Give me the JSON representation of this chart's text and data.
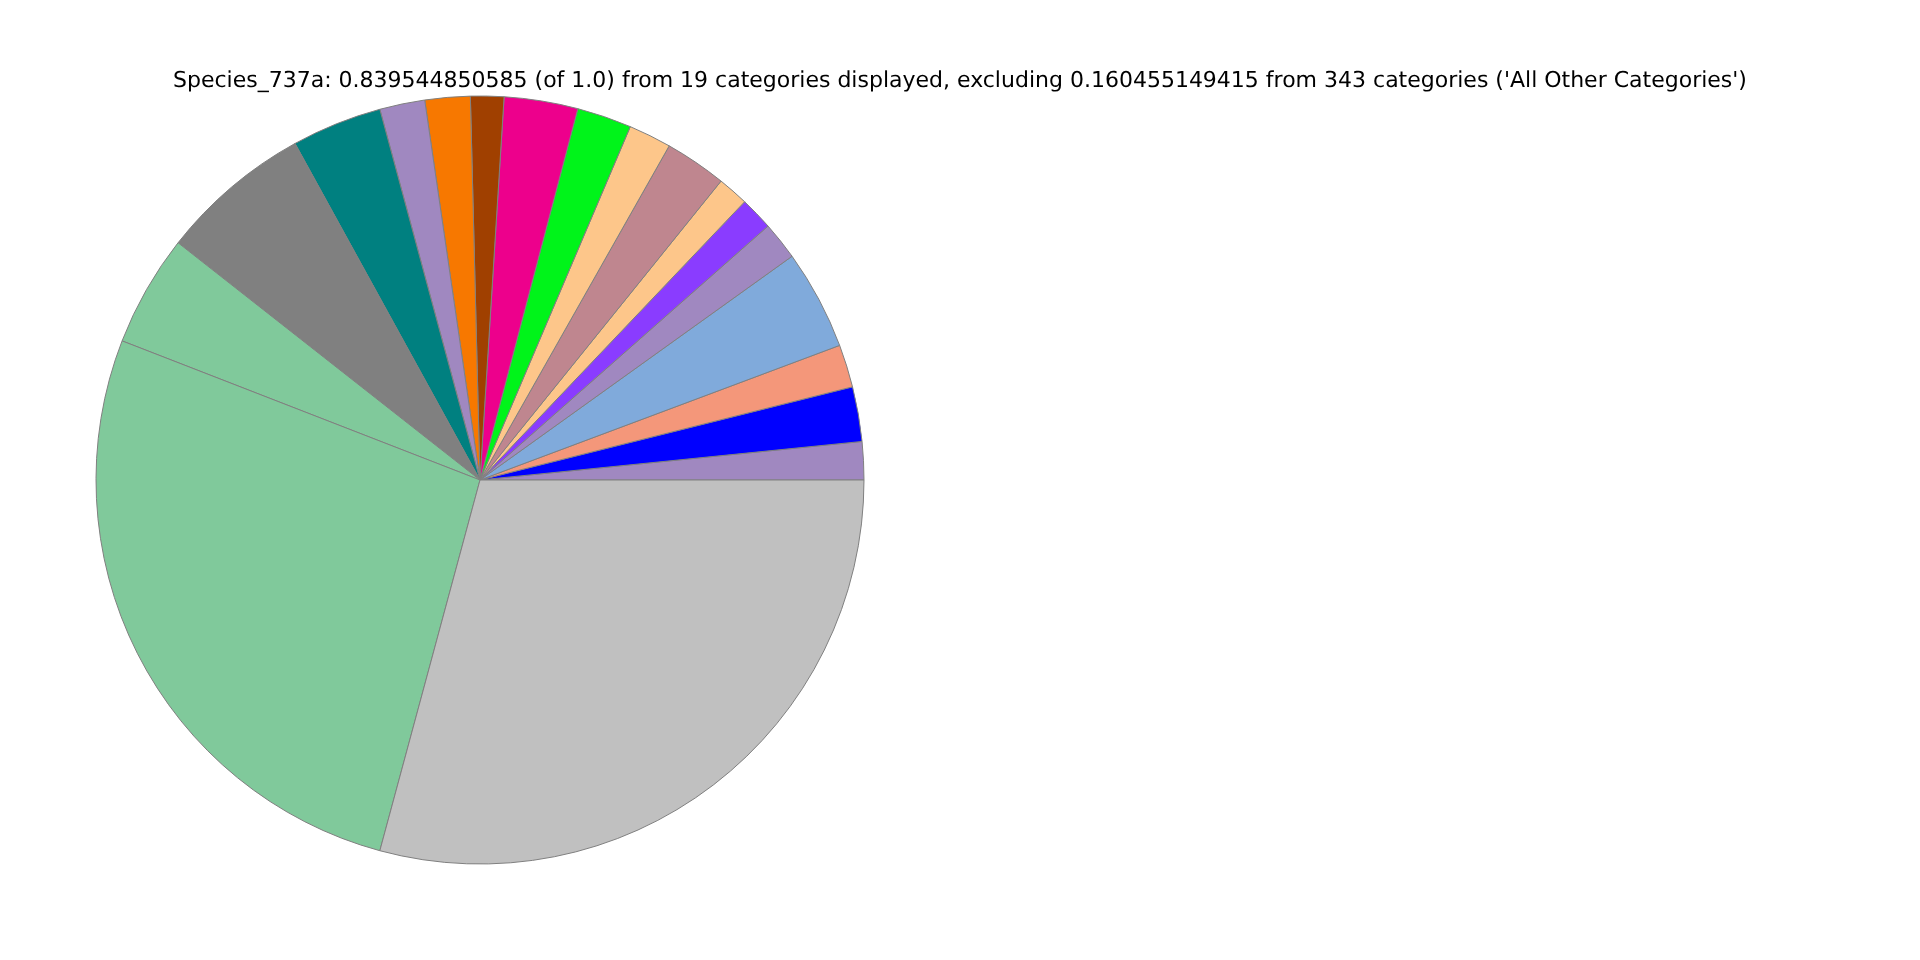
{
  "chart_data": {
    "type": "pie",
    "title": "Species_737a: 0.839544850585 (of 1.0) from 19 categories displayed, excluding 0.160455149415 from 343 categories ('All Other Categories')",
    "categories": [
      null,
      null,
      null,
      null,
      null,
      null,
      null,
      null,
      null,
      null,
      null,
      null,
      null,
      null,
      null,
      null,
      null,
      null,
      null
    ],
    "values": [
      1.6,
      2.3,
      1.8,
      4.2,
      1.6,
      1.4,
      1.3,
      2.6,
      1.8,
      2.3,
      3.1,
      1.4,
      1.9,
      1.9,
      3.8,
      6.4,
      4.7,
      26.7,
      29.2
    ],
    "colors": [
      "#a088c0",
      "#0000ff",
      "#f4977a",
      "#80aadb",
      "#a088c0",
      "#8a3cff",
      "#fdc68a",
      "#bf868f",
      "#fdc68a",
      "#00f41a",
      "#ed008c",
      "#a04000",
      "#f77800",
      "#a088c0",
      "#008080",
      "#808080",
      "#80c99b",
      "#80c99b",
      "#c0c0c0"
    ],
    "legend": false
  }
}
